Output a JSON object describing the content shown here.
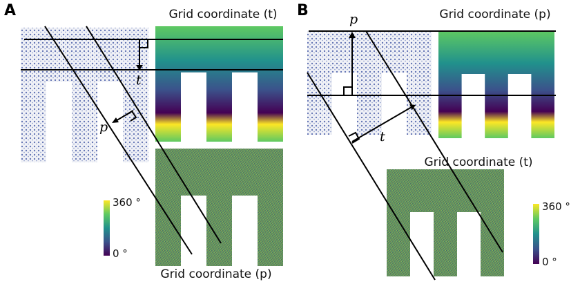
{
  "panels": [
    {
      "label": "A",
      "titles": [
        "Grid coordinate (t)",
        "Grid coordinate (p)"
      ],
      "axis_labels": [
        "t",
        "p"
      ],
      "colorbar": {
        "max": "360 °",
        "min": "0 °"
      }
    },
    {
      "label": "B",
      "titles": [
        "Grid coordinate (p)",
        "Grid coordinate (t)"
      ],
      "axis_labels": [
        "p",
        "t"
      ],
      "colorbar": {
        "max": "360 °",
        "min": "0 °"
      }
    }
  ]
}
